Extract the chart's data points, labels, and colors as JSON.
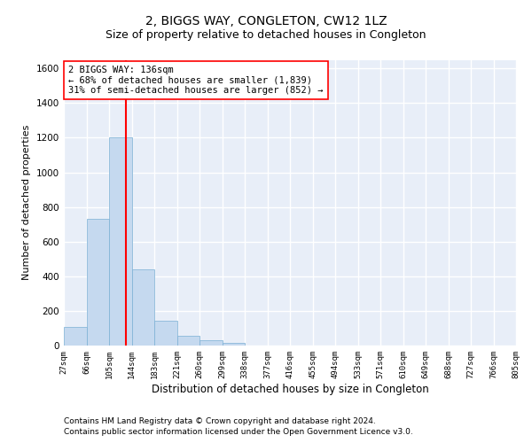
{
  "title": "2, BIGGS WAY, CONGLETON, CW12 1LZ",
  "subtitle": "Size of property relative to detached houses in Congleton",
  "xlabel": "Distribution of detached houses by size in Congleton",
  "ylabel": "Number of detached properties",
  "bar_color": "#c5d9ef",
  "bar_edge_color": "#7aafd4",
  "background_color": "#e8eef8",
  "grid_color": "#ffffff",
  "tick_labels": [
    "27sqm",
    "66sqm",
    "105sqm",
    "144sqm",
    "183sqm",
    "221sqm",
    "260sqm",
    "299sqm",
    "338sqm",
    "377sqm",
    "416sqm",
    "455sqm",
    "494sqm",
    "533sqm",
    "571sqm",
    "610sqm",
    "649sqm",
    "688sqm",
    "727sqm",
    "766sqm",
    "805sqm"
  ],
  "bar_heights": [
    105,
    730,
    1200,
    440,
    145,
    55,
    30,
    15,
    0,
    0,
    0,
    0,
    0,
    0,
    0,
    0,
    0,
    0,
    0,
    0
  ],
  "num_bars": 20,
  "ylim": [
    0,
    1650
  ],
  "yticks": [
    0,
    200,
    400,
    600,
    800,
    1000,
    1200,
    1400,
    1600
  ],
  "property_label": "2 BIGGS WAY: 136sqm",
  "annotation_line1": "← 68% of detached houses are smaller (1,839)",
  "annotation_line2": "31% of semi-detached houses are larger (852) →",
  "vline_x": 2.74,
  "footer_line1": "Contains HM Land Registry data © Crown copyright and database right 2024.",
  "footer_line2": "Contains public sector information licensed under the Open Government Licence v3.0.",
  "title_fontsize": 10,
  "subtitle_fontsize": 9,
  "xlabel_fontsize": 8.5,
  "ylabel_fontsize": 8,
  "tick_fontsize": 6.5,
  "annotation_fontsize": 7.5,
  "footer_fontsize": 6.5
}
